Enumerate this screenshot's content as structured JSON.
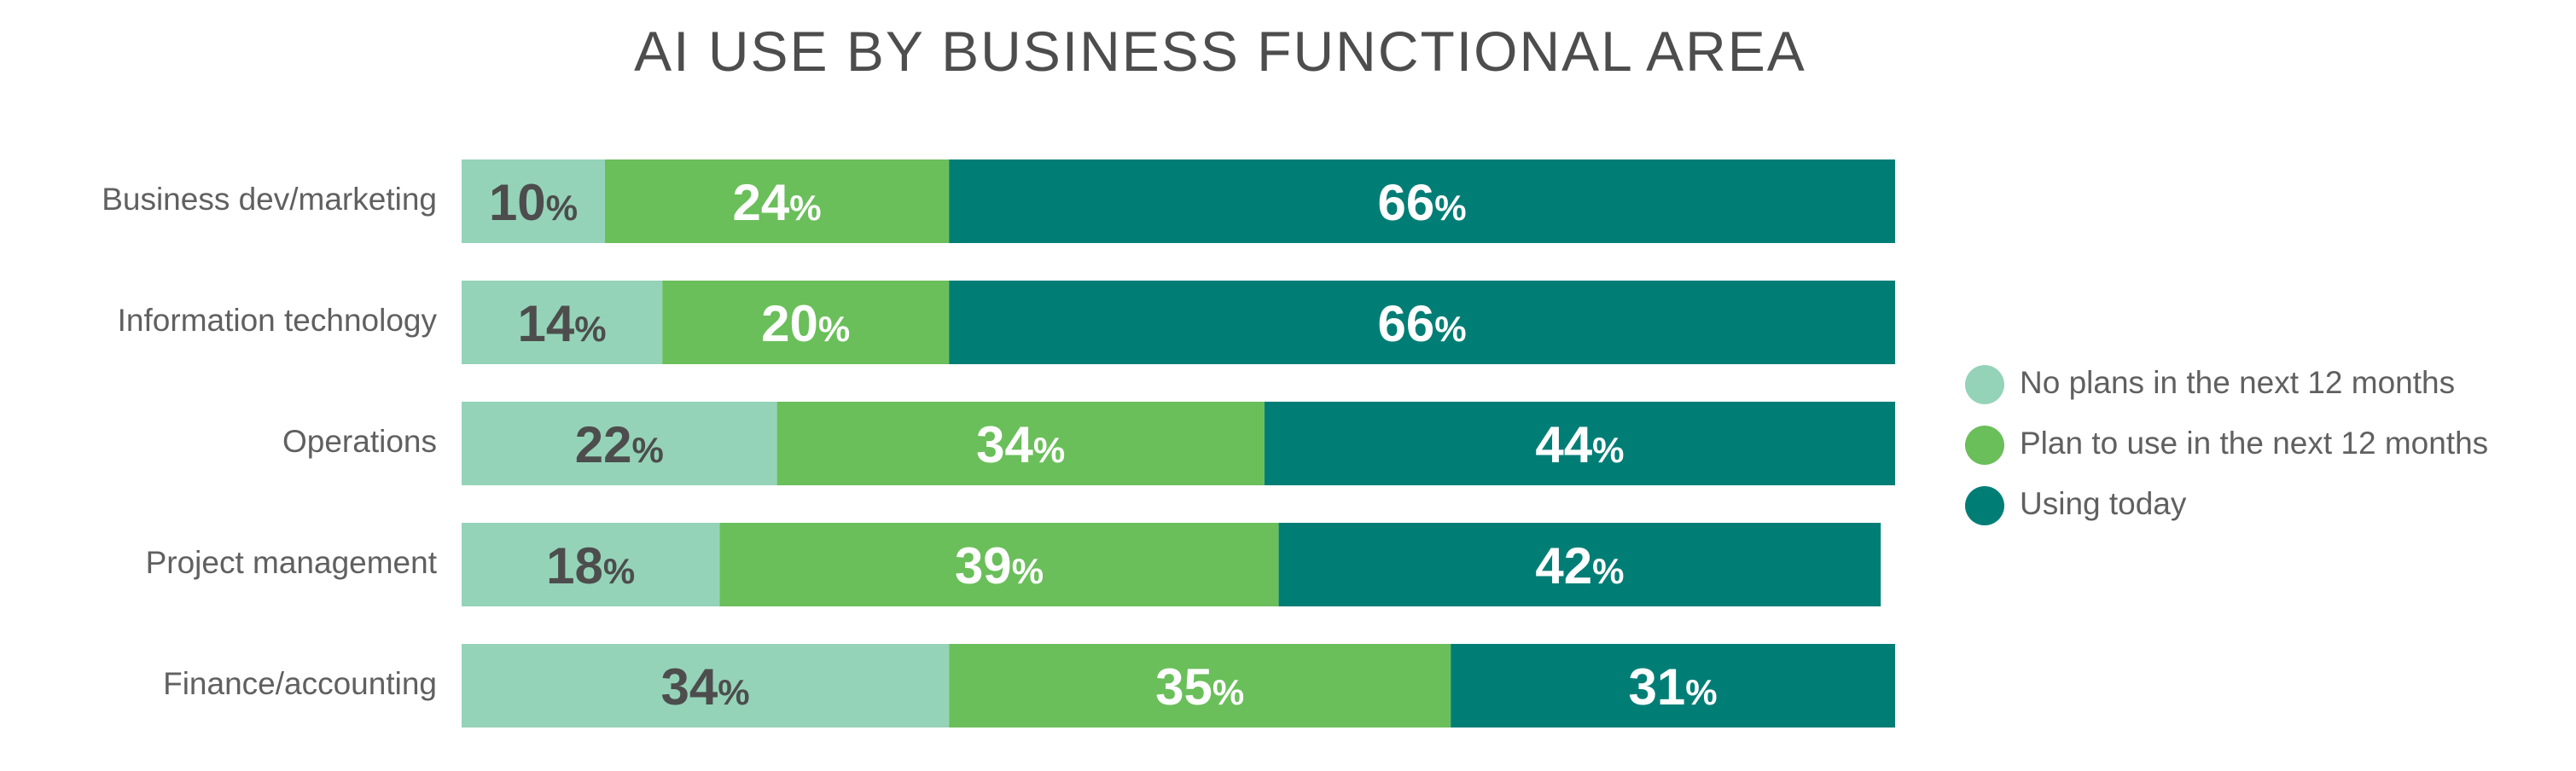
{
  "chart_data": {
    "type": "bar",
    "orientation": "horizontal",
    "stacked": true,
    "title": "AI USE BY BUSINESS FUNCTIONAL AREA",
    "categories": [
      "Business dev/marketing",
      "Information technology",
      "Operations",
      "Project management",
      "Finance/accounting"
    ],
    "series": [
      {
        "name": "No plans in the next 12 months",
        "color": "#95d3b9",
        "label_color": "#4d4d4d",
        "values": [
          10,
          14,
          22,
          18,
          34
        ]
      },
      {
        "name": "Plan to use in the next 12 months",
        "color": "#6abf5a",
        "label_color": "#ffffff",
        "values": [
          24,
          20,
          34,
          39,
          35
        ]
      },
      {
        "name": "Using today",
        "color": "#007e76",
        "label_color": "#ffffff",
        "values": [
          66,
          66,
          44,
          42,
          31
        ]
      }
    ],
    "value_suffix": "%",
    "xlim": [
      0,
      100
    ],
    "grid": false,
    "legend_position": "right"
  }
}
